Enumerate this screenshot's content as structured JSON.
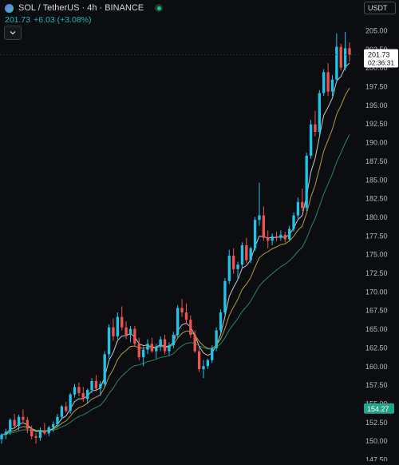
{
  "header": {
    "title": "SOL / TetherUS · 4h · BINANCE",
    "last_price": "201.73",
    "change": "+6.03 (+3.08%)"
  },
  "currency_selector": {
    "label": "USDT"
  },
  "colors": {
    "up": "#26a69a",
    "up_bright": "#22c3e6",
    "down": "#ef5350",
    "ma_fast": "#e7e7e7",
    "ma_mid": "#d9b24a",
    "ma_slow": "#2f9e6b",
    "background": "#0c0d10"
  },
  "price_scale": {
    "ticks": [
      "205.00",
      "202.50",
      "200.00",
      "197.50",
      "195.00",
      "192.50",
      "190.00",
      "187.50",
      "185.00",
      "182.50",
      "180.00",
      "177.50",
      "175.00",
      "172.50",
      "170.00",
      "167.50",
      "165.00",
      "162.50",
      "160.00",
      "157.50",
      "155.00",
      "152.50",
      "150.00",
      "147.50"
    ],
    "last_price_label": "201.73",
    "countdown_label": "02:36:31",
    "marker_label": "154.27",
    "marker_value": 154.27
  },
  "chart_data": {
    "type": "candlestick",
    "symbol": "SOL / TetherUS",
    "interval": "4h",
    "exchange": "BINANCE",
    "ylim": [
      147.0,
      206.0
    ],
    "candles": [
      [
        150.2,
        151.0,
        149.6,
        150.8
      ],
      [
        150.8,
        151.6,
        150.2,
        151.2
      ],
      [
        151.2,
        153.0,
        150.8,
        152.8
      ],
      [
        152.8,
        153.6,
        151.8,
        152.0
      ],
      [
        152.0,
        153.5,
        151.4,
        153.2
      ],
      [
        153.2,
        154.2,
        152.4,
        152.8
      ],
      [
        152.8,
        153.2,
        151.0,
        151.6
      ],
      [
        151.6,
        152.0,
        150.2,
        150.6
      ],
      [
        150.6,
        151.0,
        149.6,
        150.4
      ],
      [
        150.4,
        151.8,
        150.0,
        151.4
      ],
      [
        151.4,
        152.4,
        150.8,
        151.0
      ],
      [
        151.0,
        152.0,
        150.6,
        151.8
      ],
      [
        151.8,
        152.6,
        151.2,
        152.2
      ],
      [
        152.2,
        153.6,
        151.8,
        153.2
      ],
      [
        153.2,
        154.8,
        152.8,
        154.6
      ],
      [
        154.6,
        155.2,
        153.8,
        154.0
      ],
      [
        154.0,
        156.4,
        153.6,
        156.2
      ],
      [
        156.2,
        157.6,
        155.8,
        157.2
      ],
      [
        157.2,
        157.8,
        156.0,
        156.4
      ],
      [
        156.4,
        157.2,
        155.2,
        155.6
      ],
      [
        155.6,
        157.0,
        155.0,
        156.8
      ],
      [
        156.8,
        158.4,
        156.4,
        158.0
      ],
      [
        158.0,
        158.8,
        156.6,
        157.0
      ],
      [
        157.0,
        158.0,
        156.0,
        157.6
      ],
      [
        157.6,
        162.0,
        157.2,
        161.6
      ],
      [
        161.6,
        165.6,
        161.0,
        165.2
      ],
      [
        165.2,
        166.4,
        163.4,
        164.0
      ],
      [
        164.0,
        167.2,
        163.6,
        166.6
      ],
      [
        166.6,
        168.0,
        164.8,
        165.2
      ],
      [
        165.2,
        166.0,
        163.6,
        164.2
      ],
      [
        164.2,
        165.4,
        163.2,
        165.0
      ],
      [
        165.0,
        165.4,
        162.6,
        163.0
      ],
      [
        163.0,
        163.8,
        160.8,
        161.2
      ],
      [
        161.2,
        162.6,
        160.0,
        162.2
      ],
      [
        162.2,
        163.6,
        161.6,
        163.0
      ],
      [
        163.0,
        163.8,
        161.8,
        162.0
      ],
      [
        162.0,
        163.0,
        161.0,
        162.6
      ],
      [
        162.6,
        164.0,
        162.0,
        163.6
      ],
      [
        163.6,
        164.2,
        161.6,
        162.0
      ],
      [
        162.0,
        163.2,
        161.4,
        162.8
      ],
      [
        162.8,
        164.6,
        162.4,
        164.2
      ],
      [
        164.2,
        168.2,
        163.8,
        167.8
      ],
      [
        167.8,
        169.0,
        166.6,
        167.2
      ],
      [
        167.2,
        168.4,
        165.6,
        166.2
      ],
      [
        166.2,
        166.8,
        163.8,
        164.2
      ],
      [
        164.2,
        164.8,
        161.8,
        162.0
      ],
      [
        162.0,
        162.6,
        159.2,
        159.6
      ],
      [
        159.6,
        160.8,
        158.4,
        160.0
      ],
      [
        160.0,
        161.0,
        159.6,
        160.8
      ],
      [
        160.8,
        162.8,
        160.4,
        162.4
      ],
      [
        162.4,
        165.2,
        162.0,
        164.8
      ],
      [
        164.8,
        167.6,
        164.4,
        167.2
      ],
      [
        167.2,
        171.8,
        166.8,
        171.4
      ],
      [
        171.4,
        175.6,
        171.0,
        174.8
      ],
      [
        174.8,
        175.8,
        172.4,
        173.0
      ],
      [
        173.0,
        174.0,
        171.6,
        173.6
      ],
      [
        173.6,
        176.6,
        173.2,
        176.2
      ],
      [
        176.2,
        177.2,
        173.8,
        174.2
      ],
      [
        174.2,
        176.0,
        173.8,
        175.8
      ],
      [
        175.8,
        180.0,
        175.4,
        179.6
      ],
      [
        179.6,
        184.6,
        178.8,
        180.2
      ],
      [
        180.2,
        181.4,
        176.8,
        177.2
      ],
      [
        177.2,
        178.2,
        175.8,
        176.8
      ],
      [
        176.8,
        177.8,
        176.2,
        177.4
      ],
      [
        177.4,
        178.0,
        176.8,
        177.2
      ],
      [
        177.2,
        178.2,
        176.8,
        177.6
      ],
      [
        177.6,
        178.0,
        176.6,
        177.0
      ],
      [
        177.0,
        178.8,
        176.8,
        178.4
      ],
      [
        178.4,
        180.6,
        178.0,
        180.2
      ],
      [
        180.2,
        182.6,
        179.8,
        182.0
      ],
      [
        182.0,
        183.8,
        180.8,
        181.2
      ],
      [
        181.2,
        188.6,
        180.8,
        188.2
      ],
      [
        188.2,
        193.0,
        187.8,
        192.4
      ],
      [
        192.4,
        194.2,
        190.8,
        191.4
      ],
      [
        191.4,
        197.0,
        191.0,
        196.6
      ],
      [
        196.6,
        199.8,
        196.2,
        199.4
      ],
      [
        199.4,
        200.6,
        196.2,
        196.8
      ],
      [
        196.8,
        199.0,
        196.2,
        198.4
      ],
      [
        198.4,
        204.6,
        198.0,
        202.8
      ],
      [
        202.8,
        203.2,
        199.6,
        200.0
      ],
      [
        200.0,
        204.8,
        199.6,
        202.6
      ],
      [
        202.6,
        203.4,
        200.8,
        201.73
      ]
    ]
  }
}
